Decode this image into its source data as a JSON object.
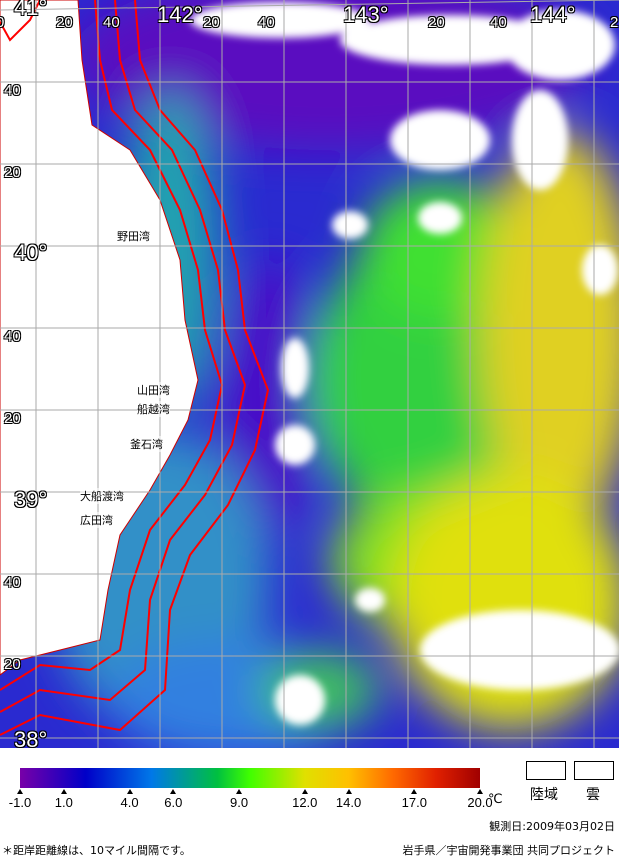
{
  "map": {
    "top_labels": [
      "0",
      "41°",
      "20",
      "40",
      "142°",
      "20",
      "40",
      "143°",
      "20",
      "40",
      "144°",
      "2"
    ],
    "left_labels": [
      "40",
      "20",
      "40°",
      "40",
      "20",
      "39°",
      "40",
      "20",
      "38°"
    ],
    "places": [
      "野田湾",
      "山田湾",
      "船越湾",
      "釜石湾",
      "大船渡湾",
      "広田湾"
    ],
    "colors": {
      "land": "#ffffff",
      "cloud": "#ffffff",
      "distance_line": "#ff0000",
      "grid": "#aaaaaa"
    }
  },
  "legend": {
    "ticks": [
      "-1.0",
      "1.0",
      "4.0",
      "6.0",
      "9.0",
      "12.0",
      "14.0",
      "17.0",
      "20.0"
    ],
    "tick_values": [
      -1,
      1,
      4,
      6,
      9,
      12,
      14,
      17,
      20
    ],
    "unit": "℃",
    "land_label": "陸域",
    "cloud_label": "雲",
    "range": [
      -1,
      20
    ]
  },
  "footer": {
    "observation_date": "観測日:2009年03月02日",
    "note": "＊距岸距離線は、10マイル間隔です。",
    "credit": "岩手県／宇宙開発事業団  共同プロジェクト"
  }
}
